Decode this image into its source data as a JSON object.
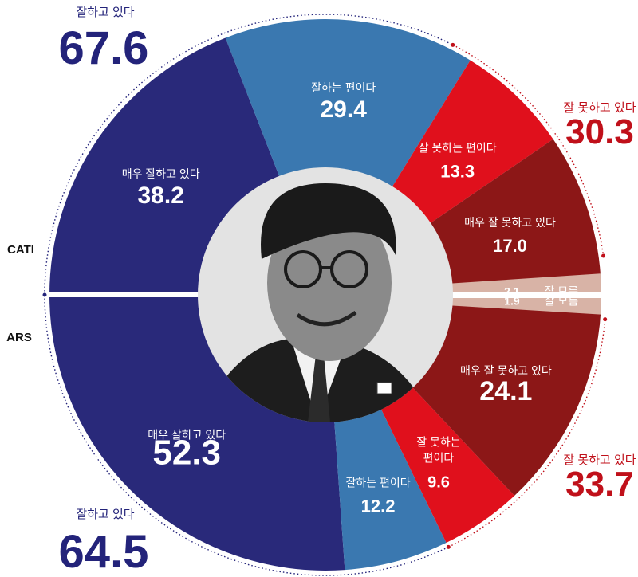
{
  "chart_data": [
    {
      "type": "pie",
      "name": "CATI",
      "categories": [
        "매우 잘하고 있다",
        "잘하는 편이다",
        "잘 못하는 편이다",
        "매우 잘 못하고 있다",
        "잘 모름"
      ],
      "values": [
        38.2,
        29.4,
        13.3,
        17.0,
        2.1
      ],
      "colors": [
        "#29297a",
        "#3a78b0",
        "#e0101c",
        "#8c1717",
        "#d8b3a6"
      ],
      "totals": [
        {
          "label": "잘하고 있다",
          "value": "67.6"
        },
        {
          "label": "잘 못하고 있다",
          "value": "30.3"
        }
      ]
    },
    {
      "type": "pie",
      "name": "ARS",
      "categories": [
        "매우 잘하고 있다",
        "잘하는 편이다",
        "잘 못하는 편이다",
        "매우 잘 못하고 있다",
        "잘 모름"
      ],
      "values": [
        52.3,
        12.2,
        9.6,
        24.1,
        1.9
      ],
      "colors": [
        "#29297a",
        "#3a78b0",
        "#e0101c",
        "#8c1717",
        "#d8b3a6"
      ],
      "totals": [
        {
          "label": "잘하고 있다",
          "value": "64.5"
        },
        {
          "label": "잘 못하고 있다",
          "value": "33.7"
        }
      ]
    }
  ],
  "labels": {
    "cati": "CATI",
    "ars": "ARS",
    "cati_seg_names": [
      "매우 잘하고 있다",
      "잘하는 편이다",
      "잘 못하는 편이다",
      "매우 잘 못하고 있다",
      "잘 모름"
    ],
    "ars_seg_names": [
      "매우 잘하고 있다",
      "잘하는 편이다",
      "잘 못하는",
      "매우 잘 못하고 있다",
      "잘 모름"
    ],
    "ars_seg_names_2": [
      "",
      "",
      "편이다",
      "",
      ""
    ]
  },
  "colors": {
    "positive_total": "#23237a",
    "negative_total": "#c0101a",
    "center_bg": "#e3e3e3"
  }
}
